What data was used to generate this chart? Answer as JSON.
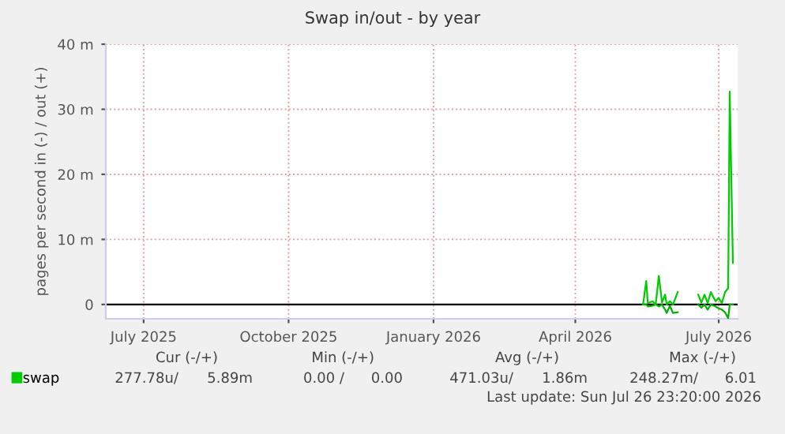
{
  "chart_data": {
    "type": "line",
    "title": "Swap in/out - by year",
    "ylabel": "pages per second in (-) / out (+)",
    "x": [
      "2026-05-28",
      "2026-05-30",
      "2026-05-31",
      "2026-06-03",
      "2026-06-05",
      "2026-06-07",
      "2026-06-09",
      "2026-06-11",
      "2026-06-12",
      "2026-06-14",
      "2026-06-16",
      "2026-06-19",
      "2026-06-25",
      "2026-07-02",
      "2026-07-04",
      "2026-07-06",
      "2026-07-08",
      "2026-07-10",
      "2026-07-13",
      "2026-07-15",
      "2026-07-17",
      "2026-07-19",
      "2026-07-21",
      "2026-07-22",
      "2026-07-24"
    ],
    "series": [
      {
        "name": "swap",
        "color": "#00cc00",
        "values": [
          0,
          3.6,
          0.2,
          0.5,
          0,
          4.4,
          0.3,
          1.5,
          0,
          0.5,
          0,
          1.9,
          null,
          1.5,
          0.3,
          1.5,
          0.2,
          1.9,
          0.5,
          1.0,
          0.2,
          1.9,
          2.5,
          32.7,
          6.4
        ]
      },
      {
        "color": "#00b000",
        "values": [
          0,
          0,
          -0.3,
          -0.2,
          0,
          -0.3,
          0,
          -0.8,
          -1.3,
          -0.2,
          -1.3,
          -1.2,
          null,
          0,
          -0.5,
          0,
          -0.8,
          0,
          -0.3,
          -0.6,
          -0.8,
          -1.2,
          -2.1,
          0,
          0
        ]
      }
    ],
    "xlim": [
      "2025-06-21",
      "2026-07-27"
    ],
    "xticks": [
      {
        "value": "2025-07-15",
        "label": "July 2025"
      },
      {
        "value": "2025-10-15",
        "label": "October 2025"
      },
      {
        "value": "2026-01-15",
        "label": "January 2026"
      },
      {
        "value": "2026-04-15",
        "label": "April 2026"
      },
      {
        "value": "2026-07-15",
        "label": "July 2026"
      }
    ],
    "ylim": [
      -2.2,
      40
    ],
    "yticks": [
      0,
      {
        "value": 10,
        "label": "10 m"
      },
      {
        "value": 20,
        "label": "20 m"
      },
      {
        "value": 30,
        "label": "30 m"
      },
      {
        "value": 40,
        "label": "40 m"
      }
    ],
    "ref_lines": [
      {
        "axis": "y",
        "value": 0,
        "color": "#000000"
      }
    ],
    "grid": true,
    "legend": "bottom left",
    "annotations": [
      "Cur (-/+)",
      "Min (-/+)",
      "Avg (-/+)",
      "Max (-/+)",
      "277.78u/",
      "5.89m",
      "0.00 /",
      "0.00",
      "471.03u/",
      "1.86m",
      "248.27m/",
      "6.01",
      "Last update: Sun Jul 26 23:20:00 2026"
    ]
  }
}
